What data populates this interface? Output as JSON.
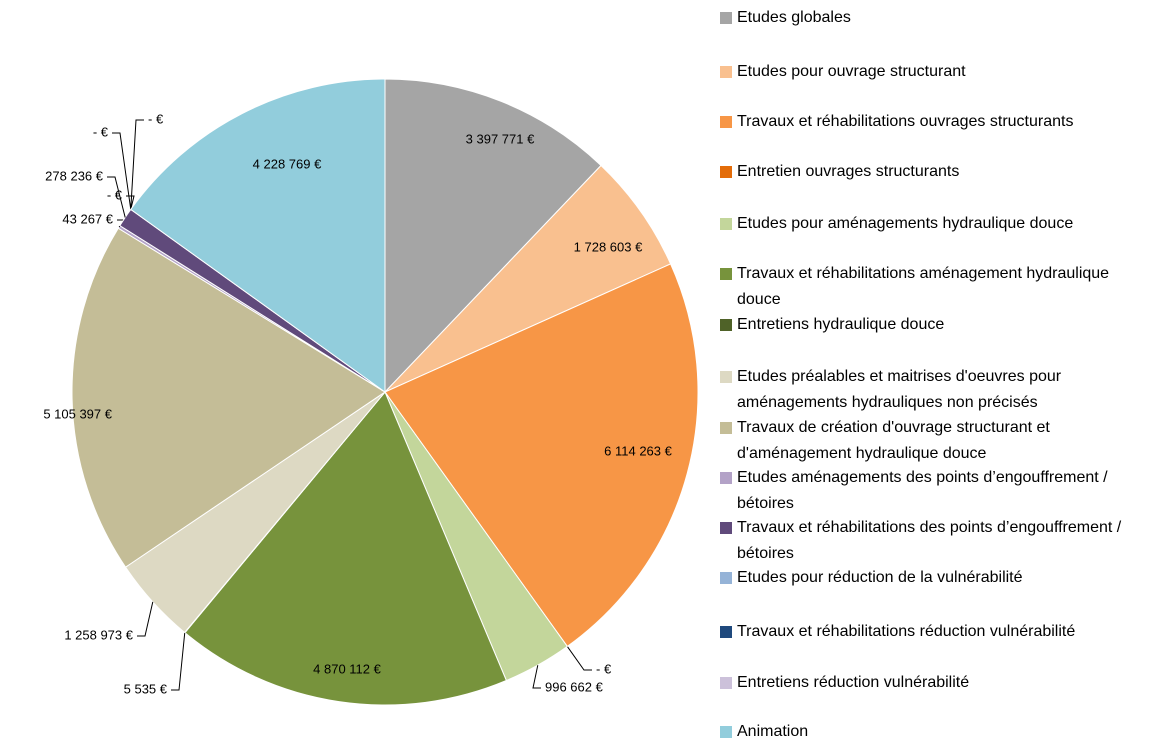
{
  "chart_data": {
    "type": "pie",
    "categories": [
      "Etudes globales",
      "Etudes pour ouvrage structurant",
      "Travaux et réhabilitations ouvrages structurants",
      "Entretien ouvrages structurants",
      "Etudes pour aménagements hydraulique douce",
      "Travaux et réhabilitations aménagement hydraulique douce",
      "Entretiens hydraulique douce",
      "Etudes préalables et maitrises d'oeuvres pour aménagements hydrauliques non précisés",
      "Travaux de création d'ouvrage structurant et d'aménagement hydraulique douce",
      "Etudes aménagements des points d’engouffrement / bétoires",
      "Travaux et réhabilitations des points d’engouffrement / bétoires",
      "Etudes pour réduction de la vulnérabilité",
      "Travaux et réhabilitations réduction vulnérabilité",
      "Entretiens réduction vulnérabilité",
      "Animation"
    ],
    "values": [
      3397771,
      1728603,
      6114263,
      0,
      996662,
      4870112,
      5535,
      1258973,
      5105397,
      43267,
      278236,
      0,
      0,
      0,
      4228769
    ],
    "value_labels": [
      "3 397 771 €",
      "1 728 603 €",
      "6 114 263 €",
      "-  €",
      "996 662 €",
      "4 870 112 €",
      "5 535 €",
      "1 258 973 €",
      "5 105 397 €",
      "43 267 €",
      "278 236 €",
      "-  €",
      "-  €",
      "-  €",
      "4 228 769 €"
    ],
    "colors": [
      "#a5a5a5",
      "#f9c08f",
      "#f79646",
      "#e36c09",
      "#c3d69b",
      "#77933c",
      "#4f6228",
      "#ddd9c3",
      "#c4bd97",
      "#b3a2c7",
      "#604a7b",
      "#95b3d7",
      "#1f497d",
      "#ccc1da",
      "#92cddc"
    ],
    "legend": "right"
  }
}
